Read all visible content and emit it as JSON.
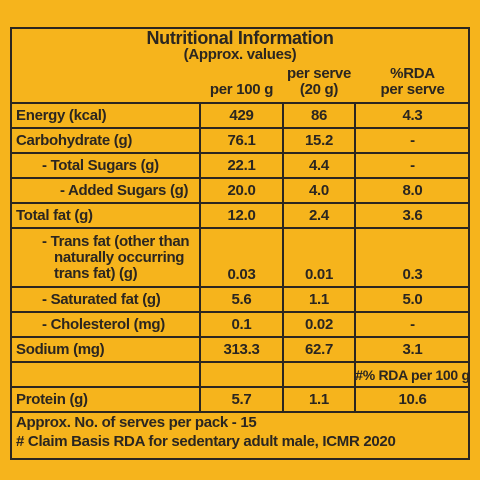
{
  "table": {
    "title": "Nutritional Information",
    "subtitle": "(Approx. values)",
    "columns": [
      [
        "per 100 g"
      ],
      [
        "per serve",
        "(20 g)"
      ],
      [
        "%RDA",
        "per serve"
      ]
    ],
    "rows": [
      {
        "label": [
          "Energy (kcal)"
        ],
        "values": [
          "429",
          "86",
          "4.3"
        ]
      },
      {
        "label": [
          "Carbohydrate (g)"
        ],
        "values": [
          "76.1",
          "15.2",
          "-"
        ]
      },
      {
        "label": [
          "- Total Sugars (g)"
        ],
        "values": [
          "22.1",
          "4.4",
          "-"
        ]
      },
      {
        "label": [
          "- Added Sugars (g)"
        ],
        "values": [
          "20.0",
          "4.0",
          "8.0"
        ]
      },
      {
        "label": [
          "Total fat (g)"
        ],
        "values": [
          "12.0",
          "2.4",
          "3.6"
        ]
      },
      {
        "label": [
          "- Trans fat (other than",
          "naturally occurring",
          "trans fat) (g)"
        ],
        "values": [
          "0.03",
          "0.01",
          "0.3"
        ]
      },
      {
        "label": [
          "- Saturated fat (g)"
        ],
        "values": [
          "5.6",
          "1.1",
          "5.0"
        ]
      },
      {
        "label": [
          "- Cholesterol (mg)"
        ],
        "values": [
          "0.1",
          "0.02",
          "-"
        ]
      },
      {
        "label": [
          "Sodium (mg)"
        ],
        "values": [
          "313.3",
          "62.7",
          "3.1"
        ]
      },
      {
        "label": [
          "Protein (g)"
        ],
        "values": [
          "5.7",
          "1.1",
          "10.6"
        ]
      }
    ],
    "rda_note": "#% RDA per 100 g",
    "footer": [
      "Approx. No. of serves per pack - 15",
      "# Claim Basis RDA for sedentary adult male, ICMR 2020"
    ]
  }
}
